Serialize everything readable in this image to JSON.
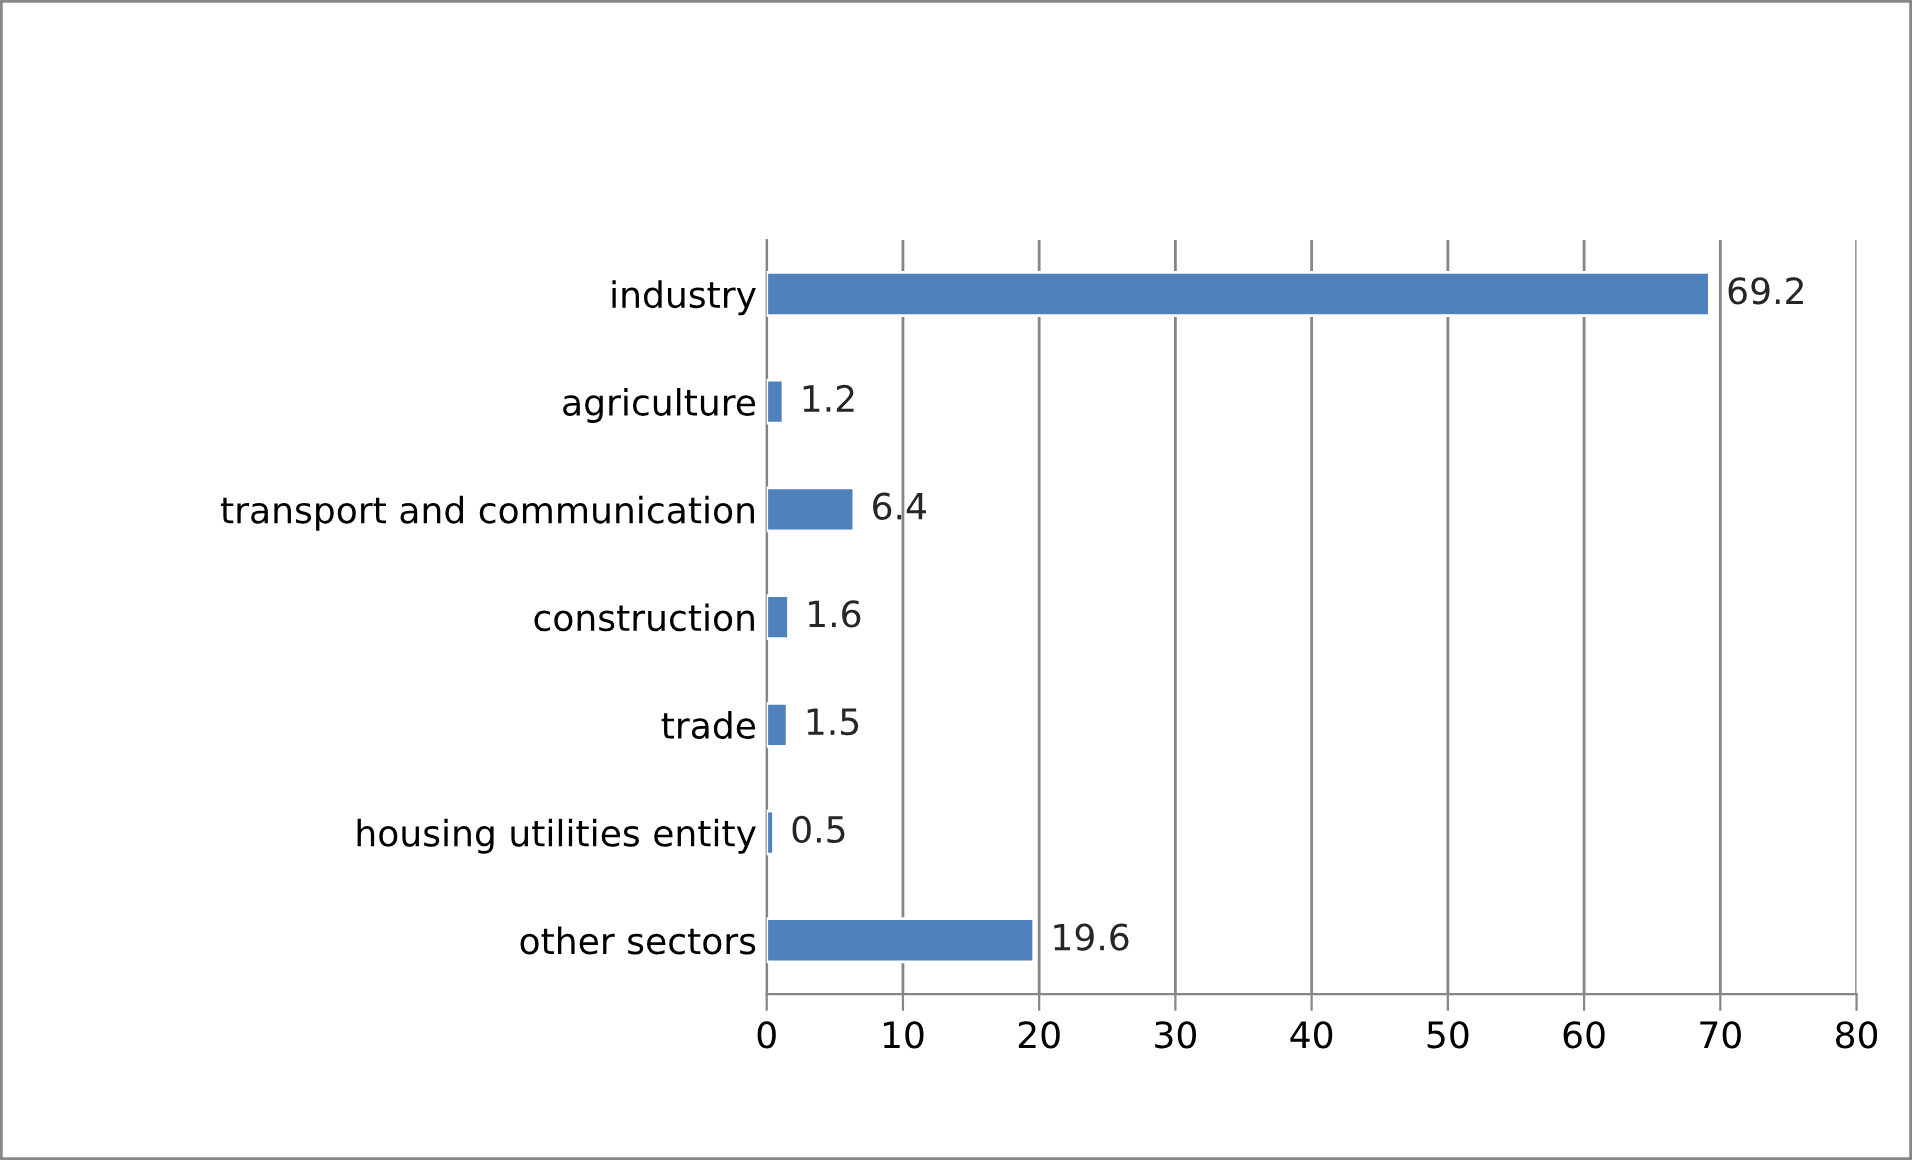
{
  "chart_data": {
    "type": "bar",
    "orientation": "horizontal",
    "categories": [
      "industry",
      "agriculture",
      "transport and communication",
      "construction",
      "trade",
      "housing utilities entity",
      "other sectors"
    ],
    "values": [
      69.2,
      1.2,
      6.4,
      1.6,
      1.5,
      0.5,
      19.6
    ],
    "color": "#4f81bd",
    "xlim": [
      0,
      80
    ],
    "xticks": [
      0,
      10,
      20,
      30,
      40,
      50,
      60,
      70,
      80
    ],
    "grid": "x",
    "data_labels": true
  }
}
